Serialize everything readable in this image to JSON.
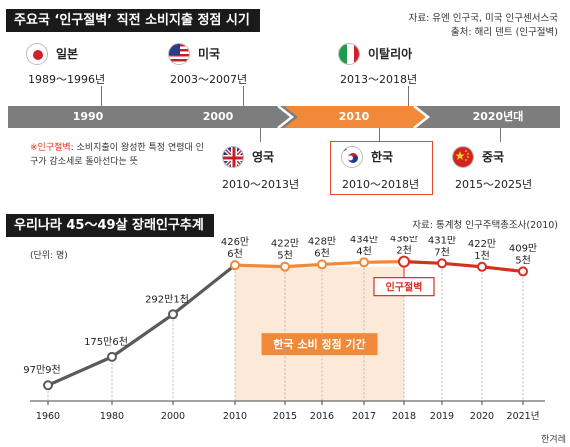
{
  "header": {
    "title": "주요국 ‘인구절벽’ 직전 소비지출 정점 시기",
    "source_line1": "자료: 유엔 인구국, 미국 인구센서스국",
    "source_line2": "출처: 해리 덴트 (인구절벽)"
  },
  "countries_top": [
    {
      "name": "일본",
      "range": "1989～1996년",
      "flag": "japan-flag"
    },
    {
      "name": "미국",
      "range": "2003～2007년",
      "flag": "usa-flag"
    },
    {
      "name": "이탈리아",
      "range": "2013～2018년",
      "flag": "italy-flag"
    }
  ],
  "timeline": {
    "labels": [
      "1990",
      "2000",
      "2010",
      "2020년대"
    ],
    "colors": {
      "gray": "#7d7d7d",
      "orange": "#f08a3a",
      "red": "#d72e1f"
    }
  },
  "note": {
    "term": "※인구절벽",
    "text": ": 소비지출이 왕성한 특정 연령대 인구가 감소세로 돌아선다는 뜻"
  },
  "countries_bottom": [
    {
      "name": "영국",
      "range": "2010～2013년",
      "flag": "uk-flag"
    },
    {
      "name": "한국",
      "range": "2010～2018년",
      "flag": "korea-flag"
    },
    {
      "name": "중국",
      "range": "2015～2025년",
      "flag": "china-flag"
    }
  ],
  "section2": {
    "title": "우리나라 45～49살 장래인구추계",
    "source": "자료: 통계청 인구주택총조사(2010)"
  },
  "chart_data": {
    "type": "line",
    "unit_label": "(단위: 명)",
    "x_labels": [
      "1960",
      "1980",
      "2000",
      "2010",
      "2015",
      "2016",
      "2017",
      "2018",
      "2019",
      "2020",
      "2021년"
    ],
    "values": [
      979000,
      1756000,
      2921000,
      4266000,
      4225000,
      4286000,
      4344000,
      4362000,
      4317000,
      4221000,
      4095000
    ],
    "value_labels": [
      [
        "97만9천"
      ],
      [
        "175만6천"
      ],
      [
        "292만1천"
      ],
      [
        "426만",
        "6천"
      ],
      [
        "422만",
        "5천"
      ],
      [
        "428만",
        "6천"
      ],
      [
        "434만",
        "4천"
      ],
      [
        "436만",
        "2천"
      ],
      [
        "431만",
        "7천"
      ],
      [
        "422만",
        "1천"
      ],
      [
        "409만",
        "5천"
      ]
    ],
    "peak_label": "인구절벽",
    "period_label": "한국 소비 정점 기간",
    "colors": {
      "early": "#5a5a5a",
      "mid": "#f08a3a",
      "late": "#d72e1f",
      "band": "#fde9d8"
    }
  },
  "footer": {
    "credit": "한겨레"
  }
}
